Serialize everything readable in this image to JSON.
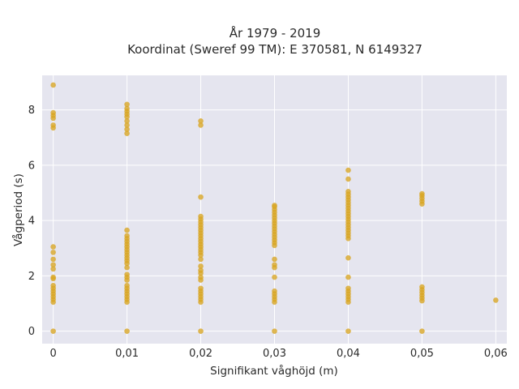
{
  "chart_data": {
    "type": "scatter",
    "title_line1": "År 1979 - 2019",
    "title_line2": "Koordinat (Sweref 99 TM): E 370581, N 6149327",
    "xlabel": "Signifikant våghöjd (m)",
    "ylabel": "Vågperiod (s)",
    "xlim": [
      -0.0015,
      0.0615
    ],
    "ylim": [
      -0.45,
      9.25
    ],
    "x_ticks": [
      0,
      0.01,
      0.02,
      0.03,
      0.04,
      0.05,
      0.06
    ],
    "x_tick_labels": [
      "0",
      "0,01",
      "0,02",
      "0,03",
      "0,04",
      "0,05",
      "0,06"
    ],
    "y_ticks": [
      0,
      2,
      4,
      6,
      8
    ],
    "y_tick_labels": [
      "0",
      "2",
      "4",
      "6",
      "8"
    ],
    "grid": true,
    "marker_color": "#d9a521",
    "background_color": "#e5e5ef",
    "points": [
      [
        0,
        0.0
      ],
      [
        0,
        1.05
      ],
      [
        0,
        1.15
      ],
      [
        0,
        1.25
      ],
      [
        0,
        1.35
      ],
      [
        0,
        1.45
      ],
      [
        0,
        1.55
      ],
      [
        0,
        1.65
      ],
      [
        0,
        1.9
      ],
      [
        0,
        1.95
      ],
      [
        0,
        2.25
      ],
      [
        0,
        2.4
      ],
      [
        0,
        2.6
      ],
      [
        0,
        2.85
      ],
      [
        0,
        3.05
      ],
      [
        0,
        7.35
      ],
      [
        0,
        7.45
      ],
      [
        0,
        7.7
      ],
      [
        0,
        7.8
      ],
      [
        0,
        7.9
      ],
      [
        0,
        8.9
      ],
      [
        0.01,
        0.0
      ],
      [
        0.01,
        1.05
      ],
      [
        0.01,
        1.15
      ],
      [
        0.01,
        1.25
      ],
      [
        0.01,
        1.35
      ],
      [
        0.01,
        1.45
      ],
      [
        0.01,
        1.55
      ],
      [
        0.01,
        1.65
      ],
      [
        0.01,
        1.85
      ],
      [
        0.01,
        1.95
      ],
      [
        0.01,
        2.05
      ],
      [
        0.01,
        2.3
      ],
      [
        0.01,
        2.45
      ],
      [
        0.01,
        2.55
      ],
      [
        0.01,
        2.65
      ],
      [
        0.01,
        2.75
      ],
      [
        0.01,
        2.85
      ],
      [
        0.01,
        2.95
      ],
      [
        0.01,
        3.05
      ],
      [
        0.01,
        3.15
      ],
      [
        0.01,
        3.25
      ],
      [
        0.01,
        3.35
      ],
      [
        0.01,
        3.45
      ],
      [
        0.01,
        3.65
      ],
      [
        0.01,
        7.15
      ],
      [
        0.01,
        7.3
      ],
      [
        0.01,
        7.45
      ],
      [
        0.01,
        7.6
      ],
      [
        0.01,
        7.75
      ],
      [
        0.01,
        7.85
      ],
      [
        0.01,
        7.95
      ],
      [
        0.01,
        8.05
      ],
      [
        0.01,
        8.2
      ],
      [
        0.02,
        0.0
      ],
      [
        0.02,
        1.05
      ],
      [
        0.02,
        1.15
      ],
      [
        0.02,
        1.25
      ],
      [
        0.02,
        1.35
      ],
      [
        0.02,
        1.45
      ],
      [
        0.02,
        1.55
      ],
      [
        0.02,
        1.85
      ],
      [
        0.02,
        1.95
      ],
      [
        0.02,
        2.1
      ],
      [
        0.02,
        2.2
      ],
      [
        0.02,
        2.35
      ],
      [
        0.02,
        2.6
      ],
      [
        0.02,
        2.75
      ],
      [
        0.02,
        2.85
      ],
      [
        0.02,
        2.95
      ],
      [
        0.02,
        3.05
      ],
      [
        0.02,
        3.15
      ],
      [
        0.02,
        3.25
      ],
      [
        0.02,
        3.35
      ],
      [
        0.02,
        3.45
      ],
      [
        0.02,
        3.55
      ],
      [
        0.02,
        3.65
      ],
      [
        0.02,
        3.75
      ],
      [
        0.02,
        3.85
      ],
      [
        0.02,
        3.95
      ],
      [
        0.02,
        4.05
      ],
      [
        0.02,
        4.15
      ],
      [
        0.02,
        4.85
      ],
      [
        0.02,
        7.45
      ],
      [
        0.02,
        7.6
      ],
      [
        0.03,
        0.0
      ],
      [
        0.03,
        1.05
      ],
      [
        0.03,
        1.15
      ],
      [
        0.03,
        1.25
      ],
      [
        0.03,
        1.35
      ],
      [
        0.03,
        1.45
      ],
      [
        0.03,
        1.95
      ],
      [
        0.03,
        2.3
      ],
      [
        0.03,
        2.4
      ],
      [
        0.03,
        2.6
      ],
      [
        0.03,
        3.1
      ],
      [
        0.03,
        3.2
      ],
      [
        0.03,
        3.3
      ],
      [
        0.03,
        3.4
      ],
      [
        0.03,
        3.5
      ],
      [
        0.03,
        3.6
      ],
      [
        0.03,
        3.7
      ],
      [
        0.03,
        3.8
      ],
      [
        0.03,
        3.9
      ],
      [
        0.03,
        4.0
      ],
      [
        0.03,
        4.1
      ],
      [
        0.03,
        4.2
      ],
      [
        0.03,
        4.3
      ],
      [
        0.03,
        4.4
      ],
      [
        0.03,
        4.5
      ],
      [
        0.03,
        4.55
      ],
      [
        0.04,
        0.0
      ],
      [
        0.04,
        1.05
      ],
      [
        0.04,
        1.15
      ],
      [
        0.04,
        1.25
      ],
      [
        0.04,
        1.35
      ],
      [
        0.04,
        1.45
      ],
      [
        0.04,
        1.55
      ],
      [
        0.04,
        1.95
      ],
      [
        0.04,
        2.65
      ],
      [
        0.04,
        3.35
      ],
      [
        0.04,
        3.45
      ],
      [
        0.04,
        3.55
      ],
      [
        0.04,
        3.65
      ],
      [
        0.04,
        3.75
      ],
      [
        0.04,
        3.85
      ],
      [
        0.04,
        3.95
      ],
      [
        0.04,
        4.05
      ],
      [
        0.04,
        4.15
      ],
      [
        0.04,
        4.25
      ],
      [
        0.04,
        4.35
      ],
      [
        0.04,
        4.45
      ],
      [
        0.04,
        4.55
      ],
      [
        0.04,
        4.65
      ],
      [
        0.04,
        4.75
      ],
      [
        0.04,
        4.85
      ],
      [
        0.04,
        4.95
      ],
      [
        0.04,
        5.05
      ],
      [
        0.04,
        5.5
      ],
      [
        0.04,
        5.82
      ],
      [
        0.05,
        0.0
      ],
      [
        0.05,
        1.1
      ],
      [
        0.05,
        1.2
      ],
      [
        0.05,
        1.3
      ],
      [
        0.05,
        1.4
      ],
      [
        0.05,
        1.5
      ],
      [
        0.05,
        1.6
      ],
      [
        0.05,
        4.6
      ],
      [
        0.05,
        4.7
      ],
      [
        0.05,
        4.8
      ],
      [
        0.05,
        4.9
      ],
      [
        0.05,
        4.97
      ],
      [
        0.06,
        1.12
      ]
    ]
  }
}
